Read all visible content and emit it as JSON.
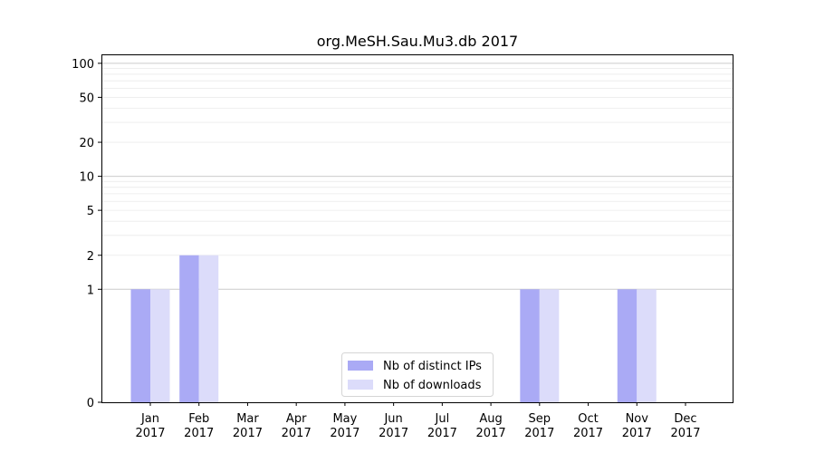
{
  "chart_data": {
    "type": "bar",
    "title": "org.MeSH.Sau.Mu3.db 2017",
    "categories": [
      [
        "Jan",
        "2017"
      ],
      [
        "Feb",
        "2017"
      ],
      [
        "Mar",
        "2017"
      ],
      [
        "Apr",
        "2017"
      ],
      [
        "May",
        "2017"
      ],
      [
        "Jun",
        "2017"
      ],
      [
        "Jul",
        "2017"
      ],
      [
        "Aug",
        "2017"
      ],
      [
        "Sep",
        "2017"
      ],
      [
        "Oct",
        "2017"
      ],
      [
        "Nov",
        "2017"
      ],
      [
        "Dec",
        "2017"
      ]
    ],
    "series": [
      {
        "name": "Nb of distinct IPs",
        "color": "#aaaaf5",
        "values": [
          1,
          2,
          0,
          0,
          0,
          0,
          0,
          0,
          1,
          0,
          1,
          0
        ]
      },
      {
        "name": "Nb of downloads",
        "color": "#dcdcfa",
        "values": [
          1,
          2,
          0,
          0,
          0,
          0,
          0,
          0,
          1,
          0,
          1,
          0
        ]
      }
    ],
    "y_scale": "symlog",
    "ylim": [
      0,
      120
    ],
    "yticks": [
      0,
      1,
      2,
      5,
      10,
      20,
      50,
      100
    ],
    "major_grid": [
      1,
      10,
      100
    ],
    "minor_grid": [
      2,
      3,
      4,
      5,
      6,
      7,
      8,
      9,
      20,
      30,
      40,
      50,
      60,
      70,
      80,
      90
    ],
    "legend_position": "lower-center",
    "xlabel": "",
    "ylabel": ""
  }
}
